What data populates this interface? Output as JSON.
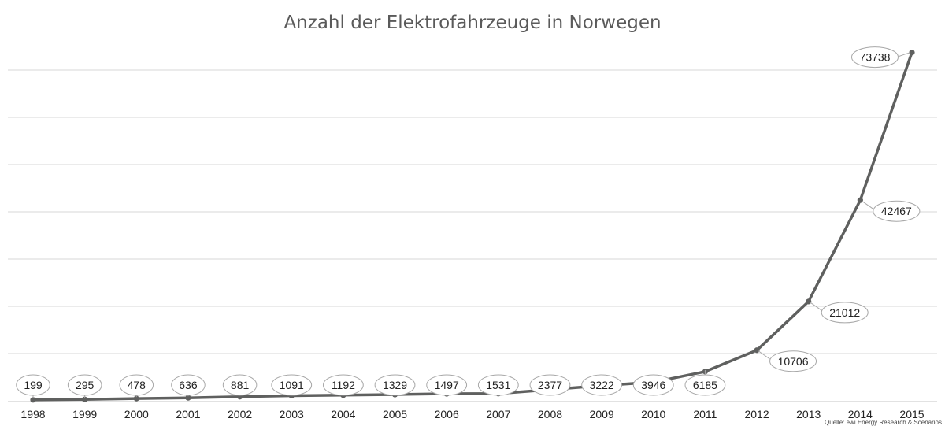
{
  "chart_data": {
    "type": "line",
    "title": "Anzahl der Elektrofahrzeuge in Norwegen",
    "xlabel": "",
    "ylabel": "",
    "categories": [
      "1998",
      "1999",
      "2000",
      "2001",
      "2002",
      "2003",
      "2004",
      "2005",
      "2006",
      "2007",
      "2008",
      "2009",
      "2010",
      "2011",
      "2012",
      "2013",
      "2014",
      "2015"
    ],
    "values": [
      199,
      295,
      478,
      636,
      881,
      1091,
      1192,
      1329,
      1497,
      1531,
      2377,
      3222,
      3946,
      6185,
      10706,
      21012,
      42467,
      73738
    ],
    "data_labels": [
      "199",
      "295",
      "478",
      "636",
      "881",
      "1091",
      "1192",
      "1329",
      "1497",
      "1531",
      "2377",
      "3222",
      "3946",
      "6185",
      "10706",
      "21012",
      "42467",
      "73738"
    ],
    "ylim": [
      0,
      70000
    ],
    "y_tick_labels_shown": false,
    "grid": "horizontal",
    "legend": "none",
    "line_color": "#5f605f",
    "source": "Quelle: ewi Energy Research & Scenarios"
  }
}
